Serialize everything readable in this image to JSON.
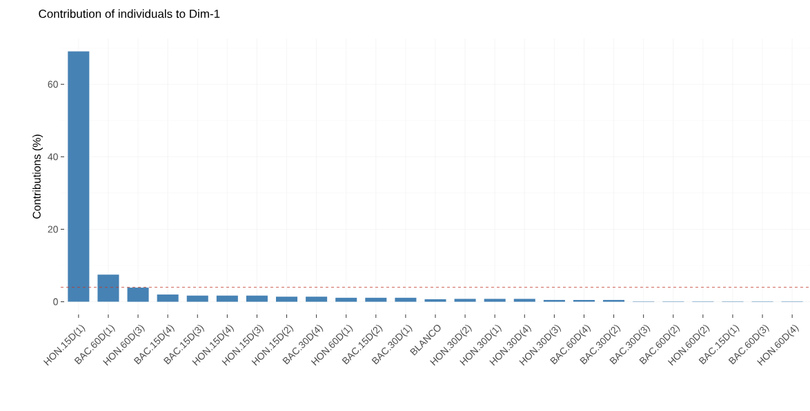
{
  "chart_data": {
    "type": "bar",
    "title": "Contribution of individuals to Dim-1",
    "ylabel": "Contributions (%)",
    "categories": [
      "HON.15D(1)",
      "BAC.60D(1)",
      "HON.60D(3)",
      "BAC.15D(4)",
      "BAC.15D(3)",
      "HON.15D(4)",
      "HON.15D(3)",
      "HON.15D(2)",
      "BAC.30D(4)",
      "HON.60D(1)",
      "BAC.15D(2)",
      "BAC.30D(1)",
      "BLANCO",
      "HON.30D(2)",
      "HON.30D(1)",
      "HON.30D(4)",
      "HON.30D(3)",
      "BAC.60D(4)",
      "BAC.30D(2)",
      "BAC.30D(3)",
      "BAC.60D(2)",
      "HON.60D(2)",
      "BAC.15D(1)",
      "BAC.60D(3)",
      "HON.60D(4)"
    ],
    "values": [
      69.1,
      7.5,
      3.9,
      2.0,
      1.7,
      1.7,
      1.7,
      1.4,
      1.4,
      1.1,
      1.1,
      1.1,
      0.7,
      0.8,
      0.8,
      0.8,
      0.5,
      0.5,
      0.5,
      0.1,
      0.1,
      0.1,
      0.1,
      0.1,
      0.1
    ],
    "color": "#4682b4",
    "ylim": [
      -3.5,
      72.6
    ],
    "yticks": [
      0,
      20,
      40,
      60
    ],
    "grid": true,
    "ref_lines": [
      {
        "axis": "y",
        "value": 4,
        "color": "#c0392b",
        "line_style": "dashed"
      }
    ]
  }
}
